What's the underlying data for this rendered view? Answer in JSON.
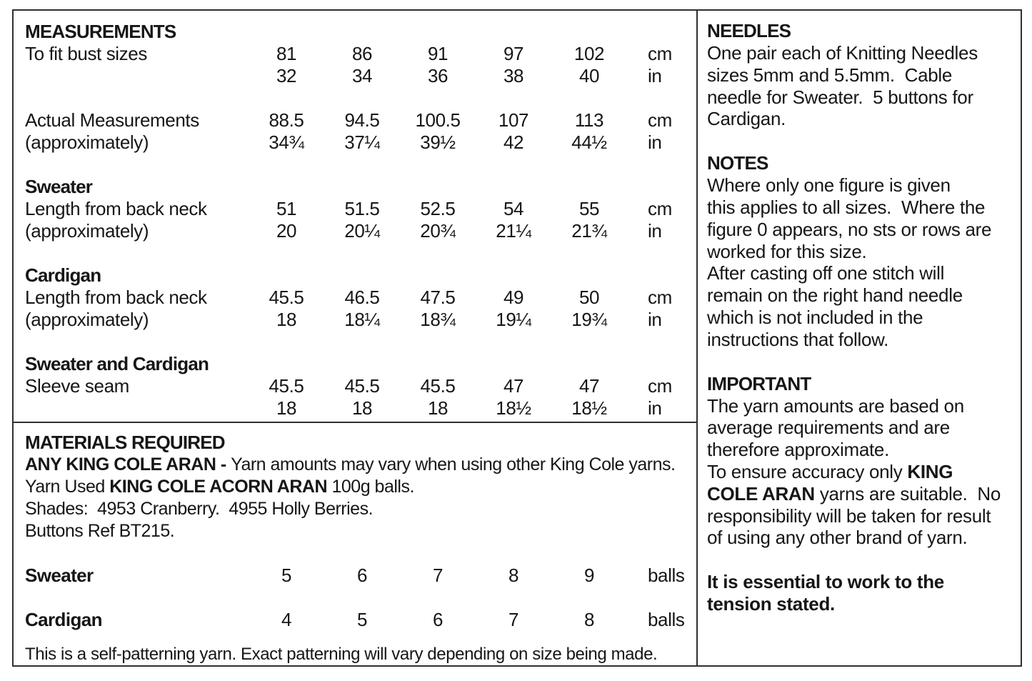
{
  "theme": {
    "bg": "#ffffff",
    "border": "#2f2f2f",
    "text": "#161616"
  },
  "measurements": {
    "title": "MEASUREMENTS",
    "groups": [
      {
        "heading": "",
        "rows": [
          {
            "label": "To fit bust sizes",
            "v": [
              "81",
              "86",
              "91",
              "97",
              "102"
            ],
            "unit": "cm"
          },
          {
            "label": "",
            "v": [
              "32",
              "34",
              "36",
              "38",
              "40"
            ],
            "unit": "in"
          }
        ]
      },
      {
        "heading": "",
        "rows": [
          {
            "label": "Actual Measurements",
            "v": [
              "88.5",
              "94.5",
              "100.5",
              "107",
              "113"
            ],
            "unit": "cm"
          },
          {
            "label": "(approximately)",
            "v": [
              "34¾",
              "37¼",
              "39½",
              "42",
              "44½"
            ],
            "unit": "in"
          }
        ]
      },
      {
        "heading": "Sweater",
        "rows": [
          {
            "label": "Length from back neck",
            "v": [
              "51",
              "51.5",
              "52.5",
              "54",
              "55"
            ],
            "unit": "cm"
          },
          {
            "label": "(approximately)",
            "v": [
              "20",
              "20¼",
              "20¾",
              "21¼",
              "21¾"
            ],
            "unit": "in"
          }
        ]
      },
      {
        "heading": "Cardigan",
        "rows": [
          {
            "label": "Length from back neck",
            "v": [
              "45.5",
              "46.5",
              "47.5",
              "49",
              "50"
            ],
            "unit": "cm"
          },
          {
            "label": "(approximately)",
            "v": [
              "18",
              "18¼",
              "18¾",
              "19¼",
              "19¾"
            ],
            "unit": "in"
          }
        ]
      },
      {
        "heading": "Sweater and Cardigan",
        "rows": [
          {
            "label": "Sleeve seam",
            "v": [
              "45.5",
              "45.5",
              "45.5",
              "47",
              "47"
            ],
            "unit": "cm"
          },
          {
            "label": "",
            "v": [
              "18",
              "18",
              "18",
              "18½",
              "18½"
            ],
            "unit": "in"
          }
        ]
      }
    ]
  },
  "materials": {
    "title": "MATERIALS REQUIRED",
    "line1_bold": "ANY KING COLE ARAN - ",
    "line1_rest": "Yarn amounts may vary when using other King Cole yarns.",
    "line2_pre": "Yarn Used ",
    "line2_bold": "KING COLE ACORN ARAN",
    "line2_rest": " 100g balls.",
    "line3": "Shades:  4953 Cranberry.  4955 Holly Berries.",
    "line4": "Buttons Ref BT215.",
    "rows": [
      {
        "label": "Sweater",
        "v": [
          "5",
          "6",
          "7",
          "8",
          "9"
        ],
        "unit": "balls"
      },
      {
        "label": "Cardigan",
        "v": [
          "4",
          "5",
          "6",
          "7",
          "8"
        ],
        "unit": "balls"
      }
    ],
    "footnote": "This is a self-patterning yarn. Exact patterning will vary depending on size being made."
  },
  "sidebar": {
    "needles_title": "NEEDLES",
    "needles_body": "One pair each of Knitting Needles\nsizes 5mm and 5.5mm.  Cable\nneedle for Sweater.  5 buttons for\nCardigan.",
    "notes_title": "NOTES",
    "notes_body1": "Where only one figure is given\nthis applies to all sizes.  Where the\nfigure 0 appears, no sts or rows are\nworked for this size.",
    "notes_body2": "After casting off one stitch will\nremain on the right hand needle\nwhich is not included in the\ninstructions that follow.",
    "important_title": "IMPORTANT",
    "important_body1": "The yarn amounts are based on\naverage requirements and are\ntherefore approximate.",
    "important_body2_pre": "To ensure accuracy only ",
    "important_body2_bold": "KING\nCOLE ARAN",
    "important_body2_rest": " yarns are suitable.  No\nresponsibility will be taken for result\nof using any other brand of yarn.",
    "tension_note": "It is essential to work to the\ntension stated."
  }
}
